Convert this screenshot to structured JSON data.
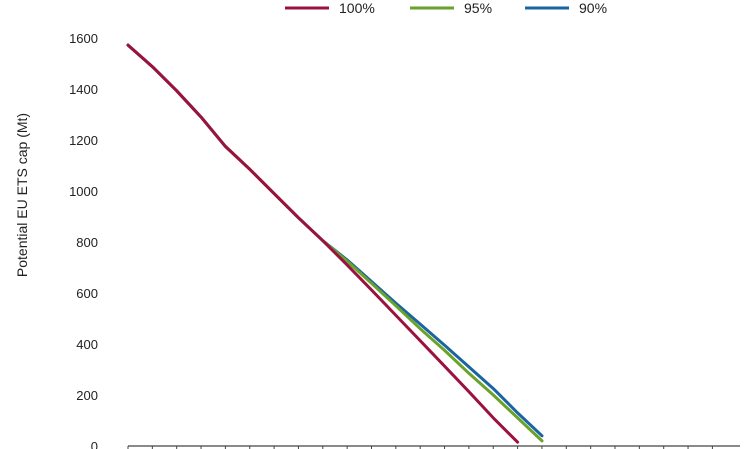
{
  "chart_data": {
    "type": "line",
    "title": "",
    "xlabel": "",
    "ylabel": "Potential EU ETS cap (Mt)",
    "ylim": [
      0,
      1700
    ],
    "yticks": [
      0,
      200,
      400,
      600,
      800,
      1000,
      1200,
      1400,
      1600
    ],
    "x": [
      0,
      1,
      2,
      3,
      4,
      5,
      6,
      7,
      8,
      9,
      10,
      11,
      12,
      13,
      14,
      15,
      16,
      17,
      18,
      19,
      20,
      21,
      22,
      23
    ],
    "xlim": [
      0,
      24
    ],
    "grid": false,
    "legend_position": "top",
    "series": [
      {
        "name": "100%",
        "color": "#9b1240",
        "values": [
          1572,
          1488,
          1393,
          1290,
          1175,
          1085,
          990,
          895,
          805,
          710,
          612,
          512,
          413,
          313,
          213,
          110,
          15,
          null,
          null,
          null,
          null,
          null,
          null,
          null
        ]
      },
      {
        "name": "95%",
        "color": "#6aa22c",
        "values": [
          1572,
          1488,
          1393,
          1290,
          1175,
          1085,
          990,
          895,
          805,
          725,
          638,
          550,
          460,
          375,
          285,
          200,
          110,
          20,
          null,
          null,
          null,
          null,
          null,
          null
        ]
      },
      {
        "name": "90%",
        "color": "#1a64a0",
        "values": [
          1572,
          1488,
          1393,
          1290,
          1175,
          1085,
          990,
          895,
          805,
          730,
          645,
          560,
          478,
          395,
          310,
          225,
          130,
          40,
          null,
          null,
          null,
          null,
          null,
          null
        ]
      }
    ]
  }
}
